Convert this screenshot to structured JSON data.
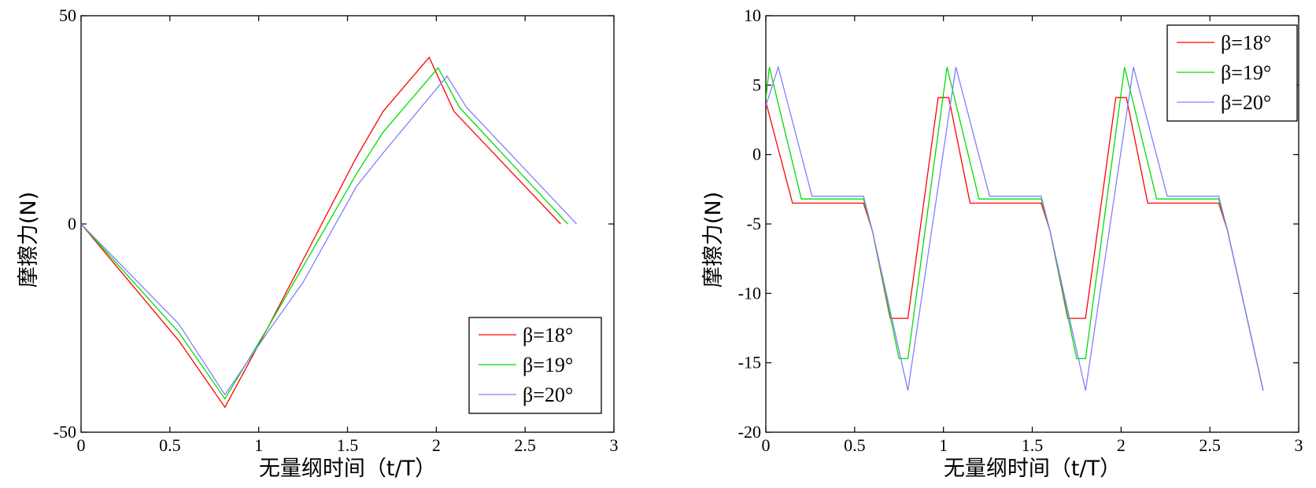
{
  "chart_data": [
    {
      "type": "line",
      "title": "",
      "xlabel": "无量纲时间（t/T）",
      "ylabel": "摩擦力(N)",
      "xlim": [
        0,
        3
      ],
      "ylim": [
        -50,
        50
      ],
      "xticks": [
        0,
        0.5,
        1,
        1.5,
        2,
        2.5,
        3
      ],
      "xtick_labels": [
        "0",
        "0.5",
        "1",
        "1.5",
        "2",
        "2.5",
        "3"
      ],
      "yticks": [
        -50,
        0,
        50
      ],
      "ytick_labels": [
        "-50",
        "0",
        "50"
      ],
      "grid": false,
      "legend_position": "bottom-right",
      "series": [
        {
          "name": "β=18°",
          "color": "#ff0000",
          "points": [
            [
              0,
              0
            ],
            [
              0.55,
              -28
            ],
            [
              0.81,
              -44
            ],
            [
              1.05,
              -25
            ],
            [
              1.55,
              16
            ],
            [
              1.7,
              27
            ],
            [
              1.96,
              40
            ],
            [
              2.1,
              27
            ],
            [
              2.7,
              0
            ]
          ]
        },
        {
          "name": "β=19°",
          "color": "#00dd00",
          "points": [
            [
              0,
              0
            ],
            [
              0.55,
              -26
            ],
            [
              0.81,
              -42
            ],
            [
              1.05,
              -25
            ],
            [
              1.55,
              12
            ],
            [
              1.7,
              22
            ],
            [
              2.01,
              37.5
            ],
            [
              2.13,
              28
            ],
            [
              2.74,
              0
            ]
          ]
        },
        {
          "name": "β=20°",
          "color": "#8080ff",
          "points": [
            [
              0,
              0
            ],
            [
              0.55,
              -24
            ],
            [
              0.81,
              -41
            ],
            [
              1.05,
              -26
            ],
            [
              1.25,
              -14
            ],
            [
              1.55,
              9
            ],
            [
              1.7,
              17
            ],
            [
              2.06,
              35.5
            ],
            [
              2.17,
              28
            ],
            [
              2.79,
              0
            ]
          ]
        }
      ]
    },
    {
      "type": "line",
      "title": "",
      "xlabel": "无量纲时间（t/T）",
      "ylabel": "摩擦力(N)",
      "xlim": [
        0,
        3
      ],
      "ylim": [
        -20,
        10
      ],
      "xticks": [
        0,
        0.5,
        1,
        1.5,
        2,
        2.5,
        3
      ],
      "xtick_labels": [
        "0",
        "0.5",
        "1",
        "1.5",
        "2",
        "2.5",
        "3"
      ],
      "yticks": [
        -20,
        -15,
        -10,
        -5,
        0,
        5,
        10
      ],
      "ytick_labels": [
        "-20",
        "-15",
        "-10",
        "-5",
        "0",
        "5",
        "10"
      ],
      "grid": false,
      "legend_position": "top-right",
      "series": [
        {
          "name": "β=18°",
          "color": "#ff0000",
          "points": [
            [
              0,
              3.8
            ],
            [
              0.15,
              -3.5
            ],
            [
              0.55,
              -3.5
            ],
            [
              0.6,
              -5.5
            ],
            [
              0.7,
              -11.8
            ],
            [
              0.8,
              -11.8
            ],
            [
              0.97,
              4.1
            ],
            [
              1.03,
              4.1
            ],
            [
              1.15,
              -3.5
            ],
            [
              1.55,
              -3.5
            ],
            [
              1.6,
              -5.5
            ],
            [
              1.7,
              -11.8
            ],
            [
              1.8,
              -11.8
            ],
            [
              1.97,
              4.1
            ],
            [
              2.03,
              4.1
            ],
            [
              2.15,
              -3.5
            ],
            [
              2.55,
              -3.5
            ],
            [
              2.6,
              -5.5
            ],
            [
              2.8,
              -17
            ]
          ]
        },
        {
          "name": "β=19°",
          "color": "#00dd00",
          "points": [
            [
              0,
              4
            ],
            [
              0.02,
              6.3
            ],
            [
              0.2,
              -3.2
            ],
            [
              0.55,
              -3.2
            ],
            [
              0.6,
              -5.5
            ],
            [
              0.75,
              -14.7
            ],
            [
              0.8,
              -14.7
            ],
            [
              1.02,
              6.3
            ],
            [
              1.2,
              -3.2
            ],
            [
              1.55,
              -3.2
            ],
            [
              1.6,
              -5.5
            ],
            [
              1.75,
              -14.7
            ],
            [
              1.8,
              -14.7
            ],
            [
              2.02,
              6.3
            ],
            [
              2.2,
              -3.2
            ],
            [
              2.55,
              -3.2
            ],
            [
              2.6,
              -5.5
            ],
            [
              2.8,
              -17
            ]
          ]
        },
        {
          "name": "β=20°",
          "color": "#8080ff",
          "points": [
            [
              0,
              3.5
            ],
            [
              0.07,
              6.3
            ],
            [
              0.26,
              -3
            ],
            [
              0.55,
              -3
            ],
            [
              0.6,
              -5.5
            ],
            [
              0.8,
              -17
            ],
            [
              1.07,
              6.3
            ],
            [
              1.26,
              -3
            ],
            [
              1.55,
              -3
            ],
            [
              1.6,
              -5.5
            ],
            [
              1.8,
              -17
            ],
            [
              2.07,
              6.3
            ],
            [
              2.26,
              -3
            ],
            [
              2.55,
              -3
            ],
            [
              2.6,
              -5.5
            ],
            [
              2.8,
              -17
            ]
          ]
        }
      ]
    }
  ]
}
